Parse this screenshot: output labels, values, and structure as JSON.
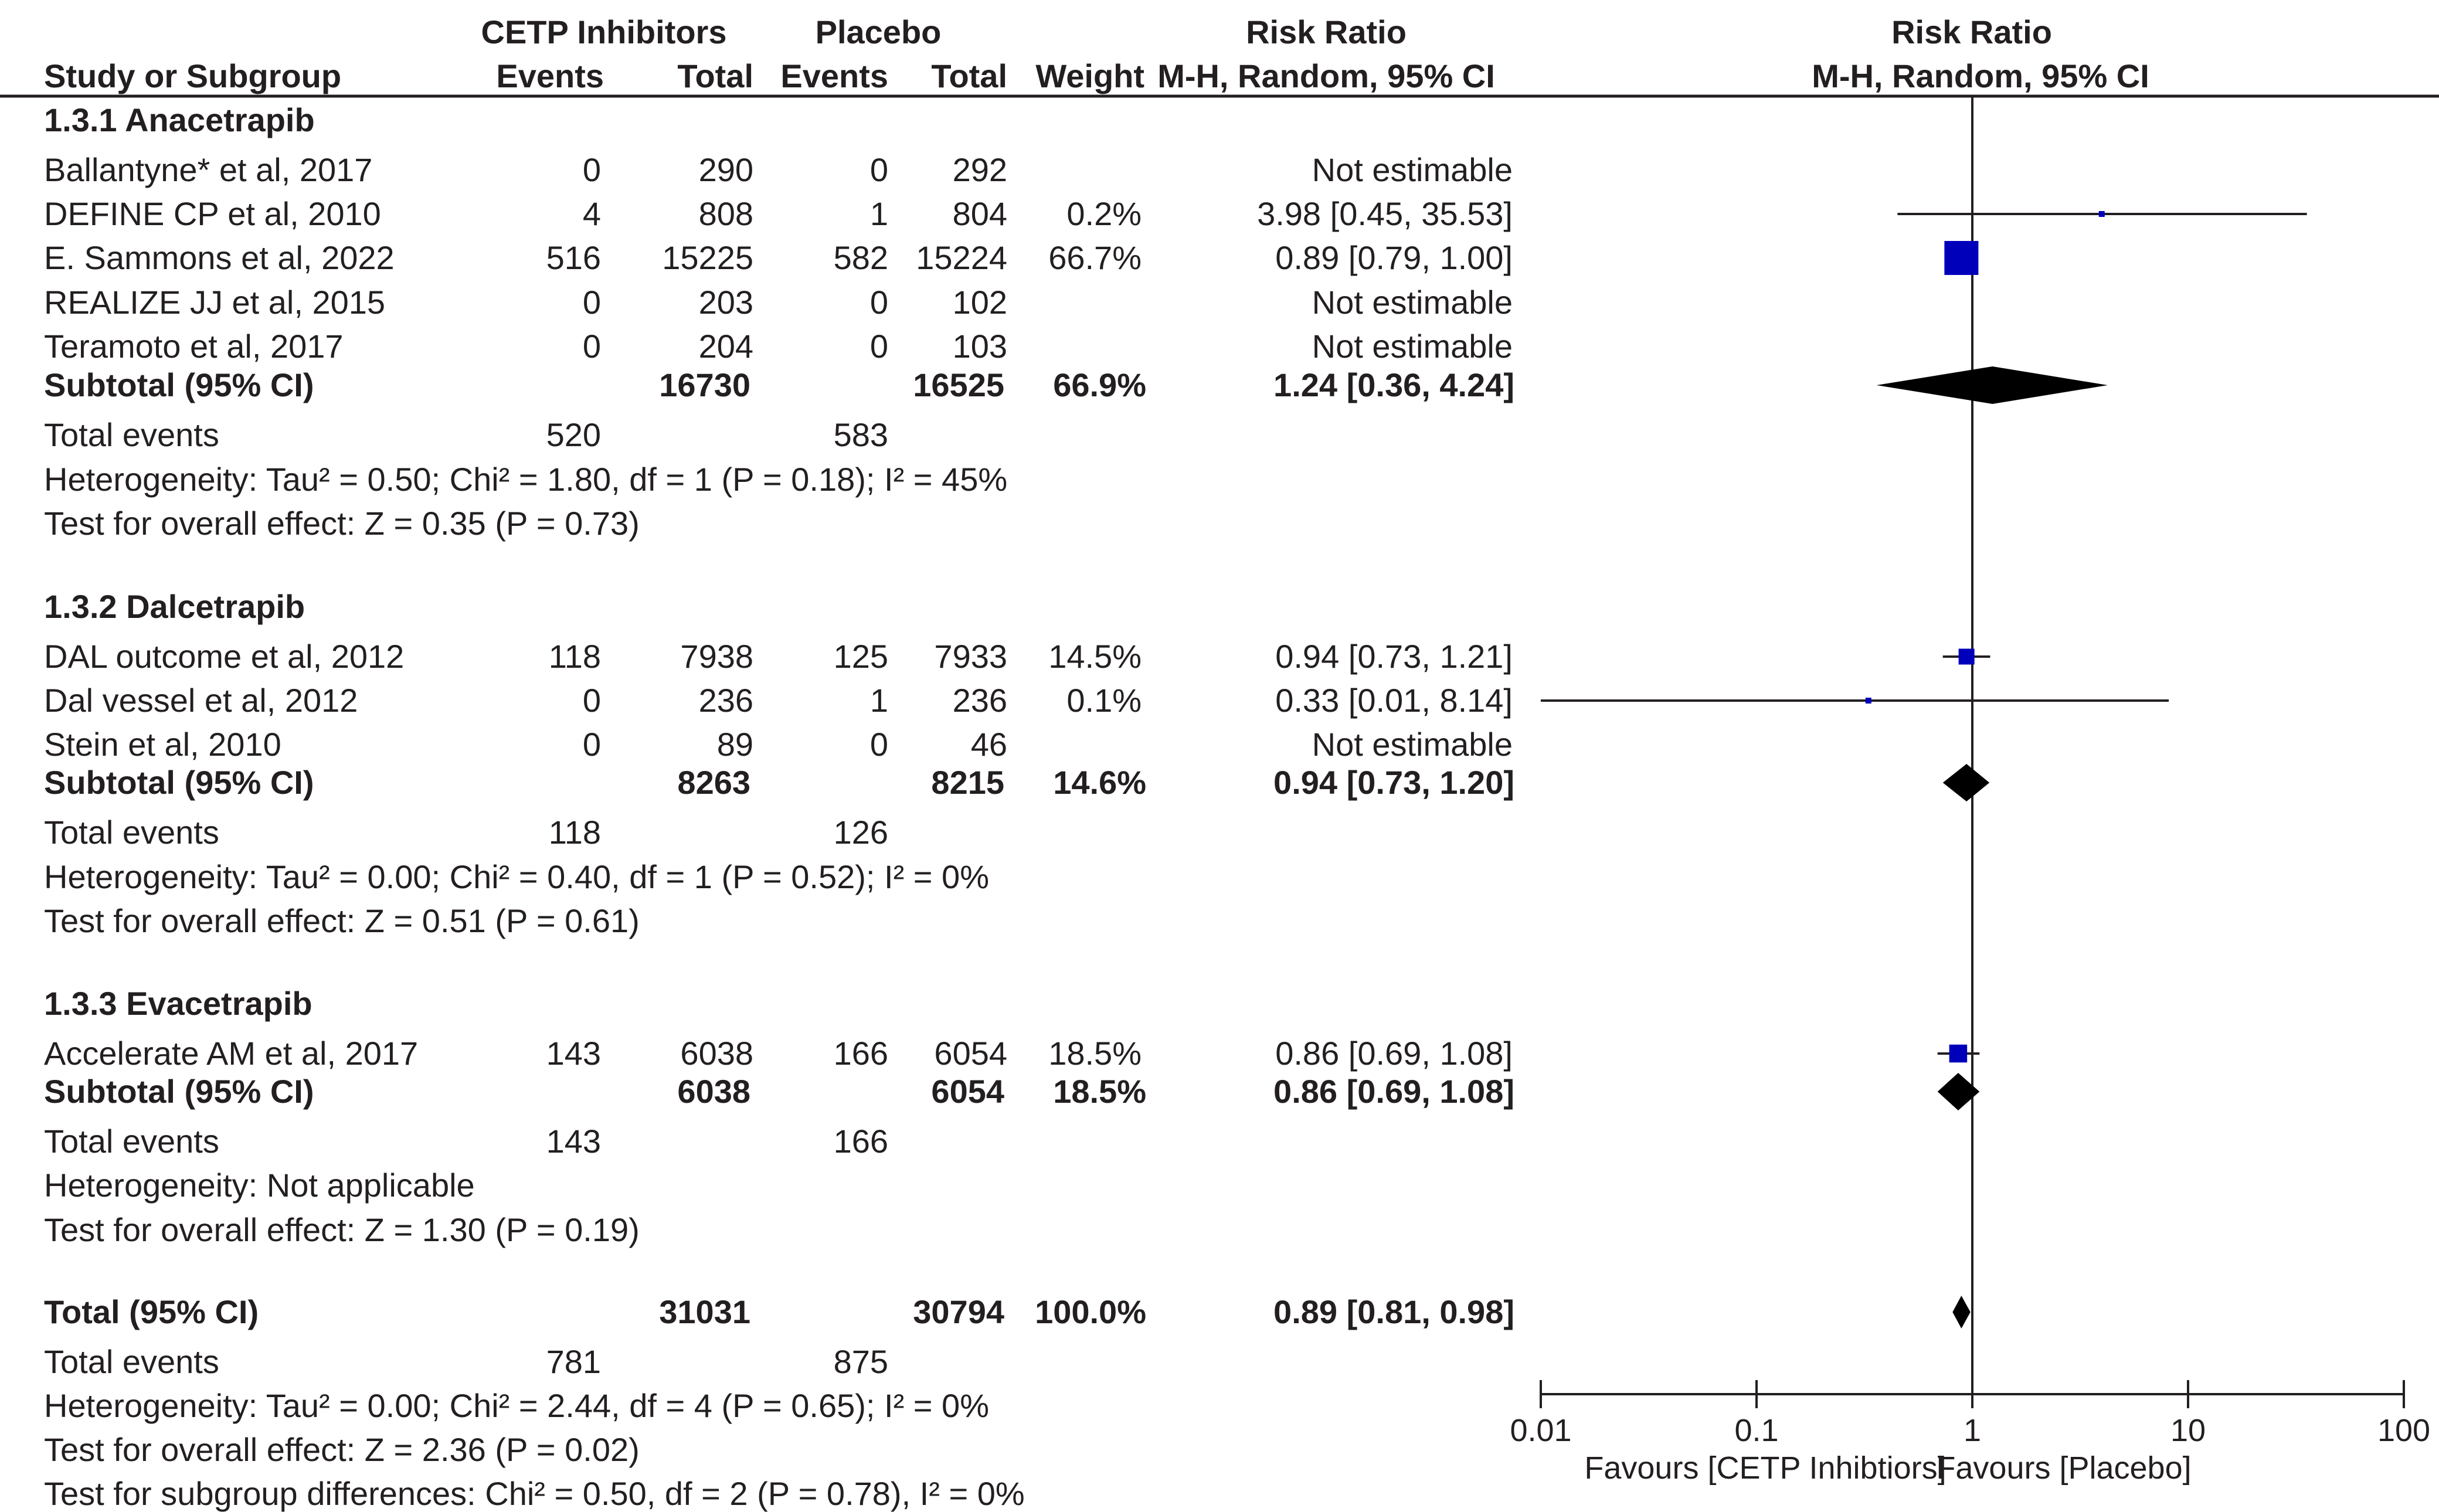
{
  "header": {
    "group1": "CETP Inhibitors",
    "group2": "Placebo",
    "rr_title": "Risk Ratio",
    "plot_title": "Risk Ratio",
    "col_study": "Study or Subgroup",
    "col_events1": "Events",
    "col_total1": "Total",
    "col_events2": "Events",
    "col_total2": "Total",
    "col_weight": "Weight",
    "col_method": "M-H, Random, 95% CI",
    "plot_method": "M-H, Random, 95% CI"
  },
  "subgroups": [
    {
      "title": "1.3.1 Anacetrapib",
      "studies": [
        {
          "name": "Ballantyne* et al, 2017",
          "e1": "0",
          "t1": "290",
          "e2": "0",
          "t2": "292",
          "weight": "",
          "rr": "Not estimable"
        },
        {
          "name": "DEFINE CP et al, 2010",
          "e1": "4",
          "t1": "808",
          "e2": "1",
          "t2": "804",
          "weight": "0.2%",
          "rr": "3.98 [0.45, 35.53]"
        },
        {
          "name": "E. Sammons et al, 2022",
          "e1": "516",
          "t1": "15225",
          "e2": "582",
          "t2": "15224",
          "weight": "66.7%",
          "rr": "0.89 [0.79, 1.00]"
        },
        {
          "name": "REALIZE JJ et al, 2015",
          "e1": "0",
          "t1": "203",
          "e2": "0",
          "t2": "102",
          "weight": "",
          "rr": "Not estimable"
        },
        {
          "name": "Teramoto et al, 2017",
          "e1": "0",
          "t1": "204",
          "e2": "0",
          "t2": "103",
          "weight": "",
          "rr": "Not estimable"
        }
      ],
      "subtotal": {
        "label": "Subtotal (95% CI)",
        "t1": "16730",
        "t2": "16525",
        "weight": "66.9%",
        "rr": "1.24 [0.36, 4.24]"
      },
      "events": {
        "label": "Total events",
        "e1": "520",
        "e2": "583"
      },
      "heterogeneity": "Heterogeneity: Tau² = 0.50; Chi² = 1.80, df = 1 (P = 0.18); I² = 45%",
      "overall": "Test for overall effect: Z = 0.35 (P = 0.73)"
    },
    {
      "title": "1.3.2 Dalcetrapib",
      "studies": [
        {
          "name": "DAL outcome et al, 2012",
          "e1": "118",
          "t1": "7938",
          "e2": "125",
          "t2": "7933",
          "weight": "14.5%",
          "rr": "0.94 [0.73, 1.21]"
        },
        {
          "name": "Dal vessel et al, 2012",
          "e1": "0",
          "t1": "236",
          "e2": "1",
          "t2": "236",
          "weight": "0.1%",
          "rr": "0.33 [0.01, 8.14]"
        },
        {
          "name": "Stein et al, 2010",
          "e1": "0",
          "t1": "89",
          "e2": "0",
          "t2": "46",
          "weight": "",
          "rr": "Not estimable"
        }
      ],
      "subtotal": {
        "label": "Subtotal (95% CI)",
        "t1": "8263",
        "t2": "8215",
        "weight": "14.6%",
        "rr": "0.94 [0.73, 1.20]"
      },
      "events": {
        "label": "Total events",
        "e1": "118",
        "e2": "126"
      },
      "heterogeneity": "Heterogeneity: Tau² = 0.00; Chi² = 0.40, df = 1 (P = 0.52); I² = 0%",
      "overall": "Test for overall effect: Z = 0.51 (P = 0.61)"
    },
    {
      "title": "1.3.3 Evacetrapib",
      "studies": [
        {
          "name": "Accelerate AM et al, 2017",
          "e1": "143",
          "t1": "6038",
          "e2": "166",
          "t2": "6054",
          "weight": "18.5%",
          "rr": "0.86 [0.69, 1.08]"
        }
      ],
      "subtotal": {
        "label": "Subtotal (95% CI)",
        "t1": "6038",
        "t2": "6054",
        "weight": "18.5%",
        "rr": "0.86 [0.69, 1.08]"
      },
      "events": {
        "label": "Total events",
        "e1": "143",
        "e2": "166"
      },
      "heterogeneity": "Heterogeneity: Not applicable",
      "overall": "Test for overall effect: Z = 1.30 (P = 0.19)"
    }
  ],
  "total": {
    "label": "Total (95% CI)",
    "t1": "31031",
    "t2": "30794",
    "weight": "100.0%",
    "rr": "0.89 [0.81, 0.98]",
    "events": {
      "label": "Total events",
      "e1": "781",
      "e2": "875"
    },
    "heterogeneity": "Heterogeneity: Tau² = 0.00; Chi² = 2.44, df = 4 (P = 0.65); I² = 0%",
    "overall": "Test for overall effect: Z = 2.36 (P = 0.02)",
    "subgroup_diff": "Test for subgroup differences: Chi² = 0.50, df = 2 (P = 0.78), I² = 0%"
  },
  "axis": {
    "ticks": [
      "0.01",
      "0.1",
      "1",
      "10",
      "100"
    ],
    "left_label": "Favours [CETP Inhibtiors]",
    "right_label": "Favours [Placebo]"
  },
  "colors": {
    "study_marker": "#0000bb",
    "diamond": "#000000",
    "text": "#231f20"
  },
  "chart_data": {
    "type": "forest",
    "title": "Risk Ratio",
    "method": "M-H, Random, 95% CI",
    "scale": "log",
    "xlim": [
      0.01,
      100
    ],
    "xticks": [
      0.01,
      0.1,
      1,
      10,
      100
    ],
    "null_line": 1,
    "xlabel_left": "Favours [CETP Inhibtiors]",
    "xlabel_right": "Favours [Placebo]",
    "studies": [
      {
        "name": "DEFINE CP et al, 2010",
        "est": 3.98,
        "lo": 0.45,
        "hi": 35.53,
        "weight": 0.2
      },
      {
        "name": "E. Sammons et al, 2022",
        "est": 0.89,
        "lo": 0.79,
        "hi": 1.0,
        "weight": 66.7
      },
      {
        "name": "DAL outcome et al, 2012",
        "est": 0.94,
        "lo": 0.73,
        "hi": 1.21,
        "weight": 14.5
      },
      {
        "name": "Dal vessel et al, 2012",
        "est": 0.33,
        "lo": 0.01,
        "hi": 8.14,
        "weight": 0.1
      },
      {
        "name": "Accelerate AM et al, 2017",
        "est": 0.86,
        "lo": 0.69,
        "hi": 1.08,
        "weight": 18.5
      }
    ],
    "pooled": [
      {
        "name": "Subtotal 1.3.1 Anacetrapib",
        "est": 1.24,
        "lo": 0.36,
        "hi": 4.24
      },
      {
        "name": "Subtotal 1.3.2 Dalcetrapib",
        "est": 0.94,
        "lo": 0.73,
        "hi": 1.2
      },
      {
        "name": "Subtotal 1.3.3 Evacetrapib",
        "est": 0.86,
        "lo": 0.69,
        "hi": 1.08
      },
      {
        "name": "Total (95% CI)",
        "est": 0.89,
        "lo": 0.81,
        "hi": 0.98
      }
    ]
  }
}
